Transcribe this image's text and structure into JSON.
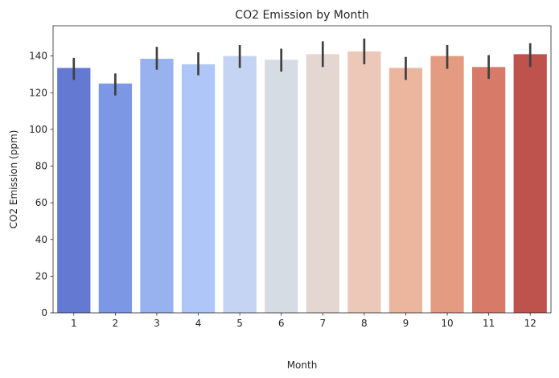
{
  "chart_data": {
    "type": "bar",
    "title": "CO2 Emission by Month",
    "xlabel": "Month",
    "ylabel": "CO2 Emission (ppm)",
    "categories": [
      "1",
      "2",
      "3",
      "4",
      "5",
      "6",
      "7",
      "8",
      "9",
      "10",
      "11",
      "12"
    ],
    "values": [
      133.5,
      125,
      138.5,
      135.5,
      140,
      138,
      141,
      142.5,
      133.5,
      140,
      134,
      141
    ],
    "error_low": [
      127,
      118.5,
      132.5,
      129.5,
      133.5,
      131.5,
      134,
      135.5,
      127,
      133,
      127.5,
      134
    ],
    "error_high": [
      139,
      130.5,
      145,
      142,
      146,
      144,
      148,
      149.5,
      139.5,
      146,
      140.5,
      147
    ],
    "ylim": [
      0,
      156.5
    ],
    "yticks": [
      0,
      20,
      40,
      60,
      80,
      100,
      120,
      140
    ],
    "grid": false,
    "legend": "none",
    "colors": [
      "#6479d1",
      "#7c97e4",
      "#98b2ef",
      "#afc7f8",
      "#c4d4f2",
      "#d6dce4",
      "#e4d7d1",
      "#ecc8b8",
      "#ebb59e",
      "#e39c82",
      "#d77b68",
      "#be534e"
    ],
    "error_color": "#404040"
  }
}
